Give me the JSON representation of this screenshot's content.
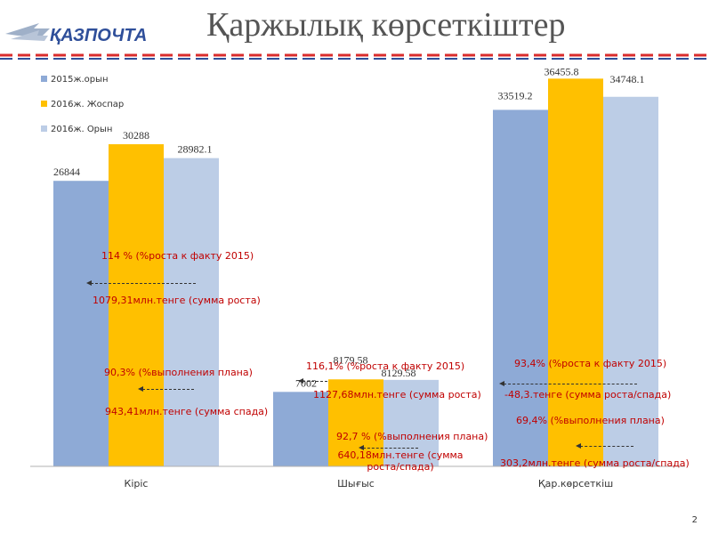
{
  "header": {
    "logo_text": "ҚАЗПОЧТА",
    "title": "Қаржылық көрсеткіштер"
  },
  "colors": {
    "series_2015_fact": "#8eaad6",
    "series_2016_plan": "#ffc000",
    "series_2016_fact": "#bccde6",
    "annotation": "#c00000",
    "stripe_red": "#d92c2c",
    "stripe_blue": "#2f4f9a"
  },
  "chart_data": {
    "type": "bar",
    "categories": [
      "Кіріс",
      "Шығыс",
      "Қар.көрсеткіш"
    ],
    "series": [
      {
        "name": "2015ж.орын",
        "values": [
          26844,
          7002,
          33519.2
        ],
        "labels": [
          "26844",
          "7002",
          "33519.2"
        ]
      },
      {
        "name": "2016ж. Жоспар",
        "values": [
          30288,
          8179.58,
          36455.8
        ],
        "labels": [
          "30288",
          "8179.58",
          "36455.8"
        ]
      },
      {
        "name": "2016ж. Орын",
        "values": [
          28982.1,
          8129.58,
          34748.1
        ],
        "labels": [
          "28982.1",
          "8129.58",
          "34748.1"
        ]
      }
    ],
    "legend_position": "top-left",
    "grid": false
  },
  "annotations": [
    "114 % (%роста к факту 2015)",
    "1079,31млн.тенге (сумма роста)",
    "90,3% (%выполнения плана)",
    "943,41млн.тенге (сумма спада)",
    "116,1% (%роста к факту 2015)",
    "1127,68млн.тенге (сумма роста)",
    "92,7 % (%выполнения плана)",
    "640,18млн.тенге (сумма роста/спада)",
    "93,4% (%роста к факту 2015)",
    "-48,3.тенге (сумма роста/спада)",
    "69,4% (%выполнения плана)",
    "303,2млн.тенге (сумма роста/спада)"
  ],
  "page_number": "2"
}
